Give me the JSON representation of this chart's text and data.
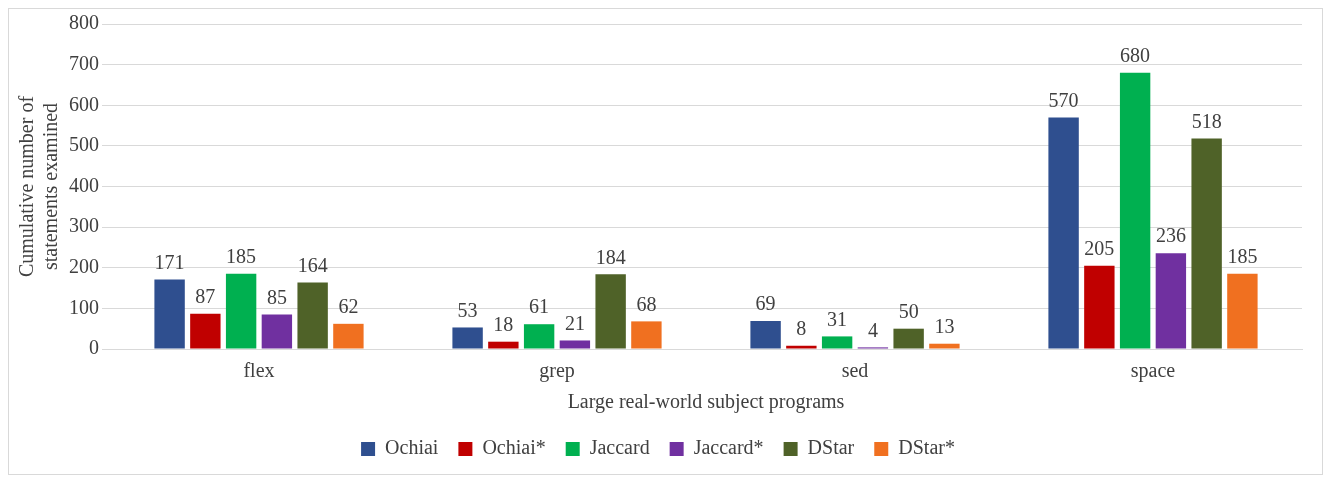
{
  "chart_data": {
    "type": "bar",
    "xlabel": "Large real-world subject programs",
    "ylabel": "Cumulative number of statements examined",
    "categories": [
      "flex",
      "grep",
      "sed",
      "space"
    ],
    "series": [
      {
        "name": "Ochiai",
        "color": "#2f4f8f",
        "values": [
          171,
          53,
          69,
          570
        ]
      },
      {
        "name": "Ochiai*",
        "color": "#c00000",
        "values": [
          87,
          18,
          8,
          205
        ]
      },
      {
        "name": "Jaccard",
        "color": "#00b050",
        "values": [
          185,
          61,
          31,
          680
        ]
      },
      {
        "name": "Jaccard*",
        "color": "#7030a0",
        "values": [
          85,
          21,
          4,
          236
        ]
      },
      {
        "name": "DStar",
        "color": "#4f6228",
        "values": [
          164,
          184,
          50,
          518
        ]
      },
      {
        "name": "DStar*",
        "color": "#f07020",
        "values": [
          62,
          68,
          13,
          185
        ]
      }
    ],
    "ylim": [
      0,
      800
    ],
    "yticks": [
      0,
      100,
      200,
      300,
      400,
      500,
      600,
      700,
      800
    ],
    "grid": "y",
    "legend": "bottom",
    "data_labels": true
  }
}
